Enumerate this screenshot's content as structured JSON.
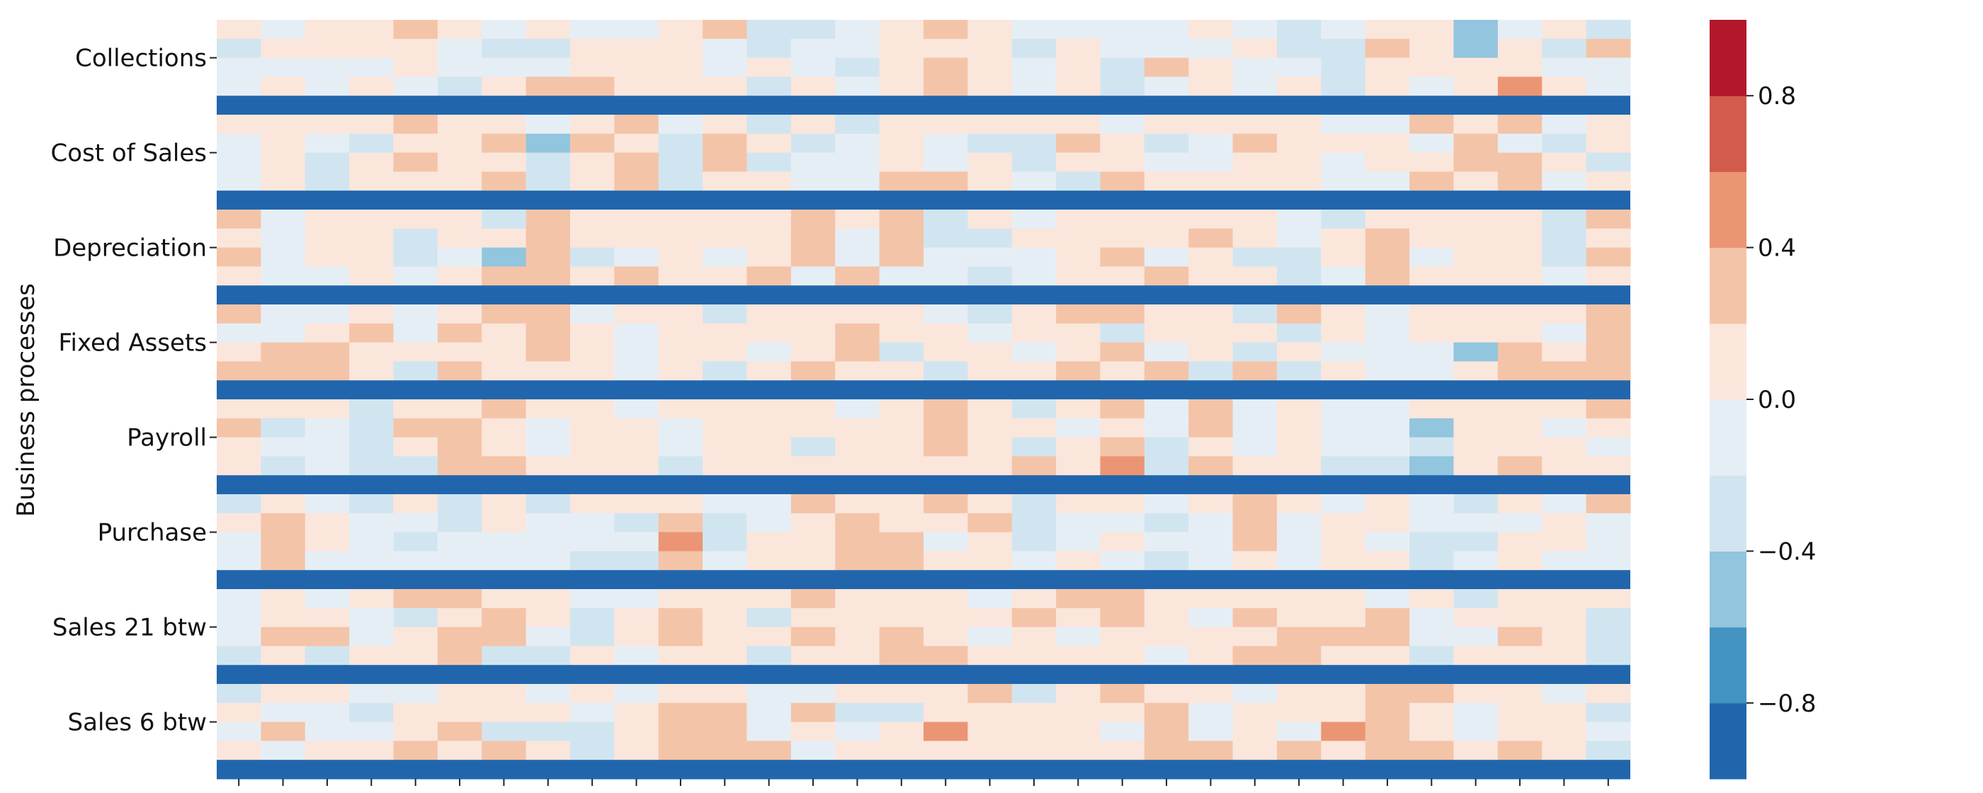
{
  "chart_data": {
    "type": "heatmap",
    "title": "",
    "xlabel": "",
    "ylabel": "Business processes",
    "groups": [
      "Collections",
      "Cost of Sales",
      "Depreciation",
      "Fixed Assets",
      "Payroll",
      "Purchase",
      "Sales 21 btw",
      "Sales 6 btw"
    ],
    "rows_per_group": 4,
    "separator_value": -0.95,
    "columns": 32,
    "colorbar": {
      "vmin": -1.0,
      "vmax": 1.0,
      "levels": 10,
      "ticks": [
        -0.8,
        -0.4,
        0.0,
        0.4,
        0.8
      ],
      "tick_labels": [
        "−0.8",
        "−0.4",
        "0.0",
        "0.4",
        "0.8"
      ],
      "colors": [
        "#2166ac",
        "#4393c3",
        "#92c5de",
        "#d1e5f0",
        "#e6eef5",
        "#fbe6dc",
        "#f4c4a8",
        "#ec9574",
        "#d15c4b",
        "#b2182b"
      ]
    },
    "matrix": [
      [
        0.1,
        -0.1,
        0.1,
        0.1,
        0.3,
        0.0,
        -0.1,
        0.1,
        -0.1,
        -0.1,
        0.1,
        0.3,
        -0.3,
        -0.3,
        -0.1,
        0.1,
        0.3,
        0.1,
        -0.1,
        -0.1,
        -0.1,
        -0.1,
        0.1,
        -0.1,
        -0.3,
        -0.1,
        0.1,
        0.1,
        -0.5,
        -0.1,
        0.1,
        -0.3
      ],
      [
        -0.3,
        0.1,
        0.1,
        0.1,
        0.1,
        -0.1,
        -0.3,
        -0.3,
        0.1,
        0.1,
        0.1,
        -0.1,
        -0.3,
        -0.1,
        -0.1,
        0.1,
        0.1,
        0.1,
        -0.3,
        0.1,
        -0.1,
        -0.1,
        -0.1,
        0.1,
        -0.3,
        -0.3,
        0.3,
        0.1,
        -0.5,
        0.1,
        -0.3,
        0.3
      ],
      [
        -0.1,
        -0.1,
        -0.1,
        -0.1,
        0.1,
        -0.1,
        -0.1,
        -0.1,
        0.1,
        0.1,
        0.1,
        -0.1,
        0.1,
        -0.1,
        -0.3,
        0.1,
        0.3,
        0.1,
        -0.1,
        0.1,
        -0.3,
        0.3,
        0.1,
        -0.1,
        -0.1,
        -0.3,
        0.1,
        0.1,
        0.1,
        0.1,
        -0.1,
        -0.1
      ],
      [
        -0.1,
        0.1,
        -0.1,
        0.1,
        -0.1,
        -0.3,
        0.1,
        0.3,
        0.3,
        0.1,
        0.1,
        0.1,
        -0.3,
        0.1,
        -0.1,
        0.1,
        0.3,
        0.1,
        -0.1,
        0.1,
        -0.3,
        -0.1,
        0.1,
        -0.1,
        0.1,
        -0.3,
        0.1,
        -0.1,
        0.1,
        0.5,
        0.1,
        -0.1
      ],
      [
        0.1,
        0.1,
        0.1,
        0.1,
        0.3,
        0.1,
        0.1,
        -0.1,
        0.1,
        0.3,
        -0.1,
        0.1,
        -0.3,
        0.1,
        -0.3,
        0.1,
        0.1,
        0.1,
        0.1,
        0.1,
        -0.1,
        0.1,
        0.1,
        0.1,
        0.1,
        -0.1,
        -0.1,
        0.3,
        0.1,
        0.3,
        -0.1,
        0.1
      ],
      [
        -0.1,
        0.1,
        -0.1,
        -0.3,
        0.1,
        0.1,
        0.3,
        -0.5,
        0.3,
        0.1,
        -0.3,
        0.3,
        0.1,
        -0.3,
        -0.1,
        0.1,
        -0.1,
        -0.3,
        -0.3,
        0.3,
        0.1,
        -0.3,
        -0.1,
        0.3,
        0.1,
        0.1,
        0.1,
        -0.1,
        0.3,
        -0.1,
        -0.3,
        0.1
      ],
      [
        -0.1,
        0.1,
        -0.3,
        0.1,
        0.3,
        0.1,
        0.1,
        -0.3,
        0.1,
        0.3,
        -0.3,
        0.3,
        -0.3,
        -0.1,
        -0.1,
        0.1,
        -0.1,
        0.1,
        -0.3,
        0.1,
        0.1,
        -0.1,
        -0.1,
        0.1,
        0.1,
        -0.1,
        0.1,
        0.1,
        0.3,
        0.3,
        0.1,
        -0.3
      ],
      [
        -0.1,
        0.1,
        -0.3,
        0.1,
        0.1,
        0.1,
        0.3,
        -0.3,
        0.1,
        0.3,
        -0.3,
        0.1,
        0.1,
        -0.1,
        -0.1,
        0.3,
        0.3,
        0.1,
        -0.1,
        -0.3,
        0.3,
        0.1,
        0.1,
        0.1,
        0.1,
        -0.1,
        -0.1,
        0.3,
        0.1,
        0.3,
        -0.1,
        0.1
      ],
      [
        0.3,
        -0.1,
        0.1,
        0.1,
        0.1,
        0.1,
        -0.3,
        0.3,
        0.1,
        0.1,
        0.1,
        0.1,
        0.1,
        0.3,
        0.1,
        0.3,
        -0.3,
        0.1,
        -0.1,
        0.1,
        0.1,
        0.1,
        0.1,
        0.1,
        -0.1,
        -0.3,
        0.1,
        0.1,
        0.1,
        0.1,
        -0.3,
        0.3
      ],
      [
        0.1,
        -0.1,
        0.1,
        0.1,
        -0.3,
        0.1,
        0.1,
        0.3,
        0.1,
        0.1,
        0.1,
        0.1,
        0.1,
        0.3,
        -0.1,
        0.3,
        -0.3,
        -0.3,
        0.1,
        0.1,
        0.1,
        0.1,
        0.3,
        0.1,
        -0.1,
        0.1,
        0.3,
        0.1,
        0.1,
        0.1,
        -0.3,
        0.1
      ],
      [
        0.3,
        -0.1,
        0.1,
        0.1,
        -0.3,
        -0.1,
        -0.5,
        0.3,
        -0.3,
        -0.1,
        0.1,
        -0.1,
        0.1,
        0.3,
        -0.1,
        0.3,
        -0.1,
        -0.1,
        -0.1,
        0.1,
        0.3,
        -0.1,
        0.1,
        -0.3,
        -0.3,
        0.1,
        0.3,
        -0.1,
        0.1,
        0.1,
        -0.3,
        0.3
      ],
      [
        0.1,
        -0.1,
        -0.1,
        0.1,
        -0.1,
        0.1,
        0.3,
        0.3,
        0.1,
        0.3,
        0.1,
        0.1,
        0.3,
        -0.1,
        0.3,
        -0.1,
        -0.1,
        -0.3,
        -0.1,
        0.1,
        0.1,
        0.3,
        0.1,
        0.1,
        -0.3,
        -0.1,
        0.3,
        0.1,
        0.1,
        0.1,
        -0.1,
        0.1
      ],
      [
        0.3,
        -0.1,
        -0.1,
        0.1,
        -0.1,
        0.1,
        0.3,
        0.3,
        -0.1,
        0.1,
        0.1,
        -0.3,
        0.1,
        0.1,
        0.1,
        0.1,
        -0.1,
        -0.3,
        0.1,
        0.3,
        0.3,
        0.1,
        0.1,
        -0.3,
        0.3,
        0.1,
        -0.1,
        0.1,
        0.1,
        0.1,
        0.1,
        0.3
      ],
      [
        -0.1,
        -0.1,
        0.1,
        0.3,
        -0.1,
        0.3,
        0.1,
        0.3,
        0.1,
        -0.1,
        0.1,
        0.1,
        0.1,
        0.1,
        0.3,
        0.1,
        0.1,
        -0.1,
        0.1,
        0.1,
        -0.3,
        0.1,
        0.1,
        0.1,
        -0.3,
        0.1,
        -0.1,
        0.1,
        0.1,
        0.1,
        -0.1,
        0.3
      ],
      [
        0.1,
        0.3,
        0.3,
        0.1,
        0.1,
        0.1,
        0.1,
        0.3,
        0.1,
        -0.1,
        0.1,
        0.1,
        -0.1,
        0.1,
        0.3,
        -0.3,
        0.1,
        0.1,
        -0.1,
        0.1,
        0.3,
        -0.1,
        0.1,
        -0.3,
        0.1,
        -0.1,
        -0.1,
        -0.1,
        -0.5,
        0.3,
        0.1,
        0.3
      ],
      [
        0.3,
        0.3,
        0.3,
        0.1,
        -0.3,
        0.3,
        0.1,
        0.1,
        0.1,
        -0.1,
        0.1,
        -0.3,
        0.1,
        0.3,
        0.1,
        0.1,
        -0.3,
        0.1,
        0.1,
        0.3,
        0.1,
        0.3,
        -0.3,
        0.3,
        -0.3,
        0.1,
        -0.1,
        -0.1,
        0.1,
        0.3,
        0.3,
        0.3
      ],
      [
        0.1,
        0.1,
        0.1,
        -0.3,
        0.1,
        0.1,
        0.3,
        0.1,
        0.1,
        -0.1,
        0.1,
        0.1,
        0.1,
        0.1,
        -0.1,
        0.1,
        0.3,
        0.1,
        -0.3,
        0.1,
        0.3,
        -0.1,
        0.3,
        -0.1,
        0.1,
        -0.1,
        -0.1,
        0.1,
        0.1,
        0.1,
        0.1,
        0.3
      ],
      [
        0.3,
        -0.3,
        -0.1,
        -0.3,
        0.3,
        0.3,
        0.1,
        -0.1,
        0.1,
        0.1,
        -0.1,
        0.1,
        0.1,
        0.1,
        0.1,
        0.1,
        0.3,
        0.1,
        0.1,
        -0.1,
        0.1,
        -0.1,
        0.3,
        -0.1,
        0.1,
        -0.1,
        -0.1,
        -0.5,
        0.1,
        0.1,
        -0.1,
        0.1
      ],
      [
        0.1,
        -0.1,
        -0.1,
        -0.3,
        0.1,
        0.3,
        0.1,
        -0.1,
        0.1,
        0.1,
        -0.1,
        0.1,
        0.1,
        -0.3,
        0.1,
        0.1,
        0.3,
        0.1,
        -0.3,
        0.1,
        0.3,
        -0.3,
        0.1,
        -0.1,
        0.1,
        -0.1,
        -0.1,
        -0.3,
        0.1,
        0.1,
        0.1,
        -0.1
      ],
      [
        0.1,
        -0.3,
        -0.1,
        -0.3,
        -0.3,
        0.3,
        0.3,
        0.1,
        0.1,
        0.1,
        -0.3,
        0.1,
        0.1,
        0.1,
        0.1,
        0.1,
        0.1,
        0.1,
        0.3,
        0.1,
        0.5,
        -0.3,
        0.3,
        0.1,
        0.1,
        -0.3,
        -0.3,
        -0.5,
        0.1,
        0.3,
        0.1,
        0.1
      ],
      [
        -0.3,
        0.1,
        -0.1,
        -0.3,
        0.1,
        -0.3,
        0.1,
        -0.3,
        0.1,
        0.1,
        0.1,
        -0.1,
        -0.1,
        0.3,
        0.1,
        0.1,
        0.3,
        0.1,
        -0.3,
        0.1,
        0.1,
        -0.1,
        0.1,
        0.3,
        0.1,
        -0.1,
        0.1,
        -0.1,
        -0.3,
        0.1,
        -0.1,
        0.3
      ],
      [
        0.1,
        0.3,
        0.1,
        -0.1,
        -0.1,
        -0.3,
        0.1,
        -0.1,
        -0.1,
        -0.3,
        0.3,
        -0.3,
        -0.1,
        0.1,
        0.3,
        0.1,
        0.1,
        0.3,
        -0.3,
        -0.1,
        -0.1,
        -0.3,
        -0.1,
        0.3,
        -0.1,
        0.1,
        0.1,
        -0.1,
        -0.1,
        -0.1,
        0.1,
        -0.1
      ],
      [
        -0.1,
        0.3,
        0.1,
        -0.1,
        -0.3,
        -0.1,
        -0.1,
        -0.1,
        -0.1,
        -0.1,
        0.5,
        -0.3,
        0.1,
        0.1,
        0.3,
        0.3,
        -0.1,
        0.1,
        -0.3,
        -0.1,
        0.1,
        -0.1,
        -0.1,
        0.3,
        -0.1,
        0.1,
        -0.1,
        -0.3,
        -0.3,
        0.1,
        0.1,
        -0.1
      ],
      [
        -0.1,
        0.3,
        -0.1,
        -0.1,
        -0.1,
        -0.1,
        -0.1,
        -0.1,
        -0.3,
        -0.3,
        0.3,
        -0.1,
        0.1,
        0.1,
        0.3,
        0.3,
        0.1,
        0.1,
        -0.1,
        0.1,
        -0.1,
        -0.3,
        -0.1,
        0.1,
        -0.1,
        0.1,
        0.1,
        -0.3,
        -0.1,
        0.1,
        -0.1,
        -0.1
      ],
      [
        -0.1,
        0.1,
        -0.1,
        0.1,
        0.3,
        0.3,
        0.1,
        0.1,
        -0.1,
        -0.1,
        0.1,
        0.1,
        0.1,
        0.3,
        0.1,
        0.1,
        0.1,
        -0.1,
        0.1,
        0.3,
        0.3,
        0.1,
        0.1,
        0.1,
        0.1,
        0.1,
        -0.1,
        0.1,
        -0.3,
        0.1,
        0.1,
        0.1
      ],
      [
        -0.1,
        0.1,
        0.1,
        -0.1,
        -0.3,
        0.1,
        0.3,
        0.1,
        -0.3,
        0.1,
        0.3,
        0.1,
        -0.3,
        0.1,
        0.1,
        0.1,
        0.1,
        0.1,
        0.3,
        0.1,
        0.3,
        0.1,
        -0.1,
        0.3,
        0.1,
        0.1,
        0.3,
        -0.1,
        0.1,
        0.1,
        0.1,
        -0.3
      ],
      [
        -0.1,
        0.3,
        0.3,
        -0.1,
        0.1,
        0.3,
        0.3,
        -0.1,
        -0.3,
        0.1,
        0.3,
        0.1,
        0.1,
        0.3,
        0.1,
        0.3,
        0.1,
        -0.1,
        0.1,
        -0.1,
        0.1,
        0.1,
        0.1,
        0.1,
        0.3,
        0.3,
        0.3,
        -0.1,
        -0.1,
        0.3,
        0.1,
        -0.3
      ],
      [
        -0.3,
        0.1,
        -0.3,
        0.1,
        0.1,
        0.3,
        -0.3,
        -0.3,
        0.1,
        -0.1,
        0.1,
        0.1,
        -0.3,
        0.1,
        0.1,
        0.3,
        0.3,
        0.1,
        0.1,
        0.1,
        0.1,
        -0.1,
        0.1,
        0.3,
        0.3,
        0.1,
        0.1,
        -0.3,
        0.1,
        0.1,
        0.1,
        -0.3
      ],
      [
        -0.3,
        0.1,
        0.1,
        -0.1,
        -0.1,
        0.1,
        0.1,
        -0.1,
        0.1,
        -0.1,
        0.1,
        0.1,
        -0.1,
        -0.1,
        0.1,
        0.1,
        0.1,
        0.3,
        -0.3,
        0.1,
        0.3,
        0.1,
        0.1,
        -0.1,
        0.1,
        0.1,
        0.3,
        0.3,
        0.1,
        0.1,
        -0.1,
        0.1
      ],
      [
        0.1,
        -0.1,
        -0.1,
        -0.3,
        0.1,
        0.1,
        0.1,
        0.1,
        -0.1,
        0.1,
        0.3,
        0.3,
        -0.1,
        0.3,
        -0.3,
        -0.3,
        0.1,
        0.1,
        0.1,
        0.1,
        0.1,
        0.3,
        -0.1,
        0.1,
        0.1,
        0.1,
        0.3,
        0.1,
        -0.1,
        0.1,
        0.1,
        -0.3
      ],
      [
        -0.1,
        0.3,
        -0.1,
        -0.1,
        0.1,
        0.3,
        -0.3,
        -0.3,
        -0.3,
        0.1,
        0.3,
        0.3,
        -0.1,
        0.1,
        -0.1,
        0.1,
        0.5,
        0.1,
        0.1,
        0.1,
        -0.1,
        0.3,
        -0.1,
        0.1,
        -0.1,
        0.5,
        0.3,
        0.1,
        -0.1,
        0.1,
        0.1,
        -0.1
      ],
      [
        0.1,
        -0.1,
        0.1,
        0.1,
        0.3,
        0.1,
        0.3,
        0.1,
        -0.3,
        0.1,
        0.3,
        0.3,
        0.3,
        -0.1,
        0.1,
        0.1,
        0.1,
        0.1,
        0.1,
        0.1,
        0.1,
        0.3,
        0.3,
        0.1,
        0.3,
        0.1,
        0.3,
        0.3,
        0.1,
        0.3,
        0.1,
        -0.3
      ]
    ]
  }
}
